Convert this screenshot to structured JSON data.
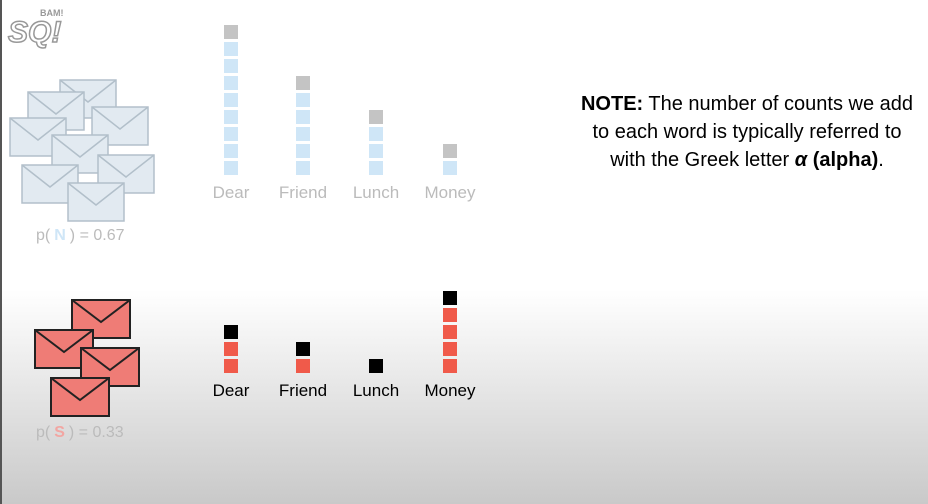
{
  "logo": "SQ!",
  "logo_badge": "BAM!",
  "words": [
    "Dear",
    "Friend",
    "Lunch",
    "Money"
  ],
  "alpha": 1,
  "classes": [
    {
      "prefix": "p(",
      "letter": "N",
      "suffix": ") = 0.67",
      "counts": [
        8,
        5,
        3,
        1
      ]
    },
    {
      "prefix": "p(",
      "letter": "S",
      "suffix": ") = 0.33",
      "counts": [
        2,
        1,
        0,
        4
      ]
    }
  ],
  "note": {
    "label": "NOTE:",
    "text": "The number of counts we add to each word is typically referred to with the Greek letter",
    "symbol": "α",
    "symbol_name": "(alpha)",
    "end": "."
  }
}
